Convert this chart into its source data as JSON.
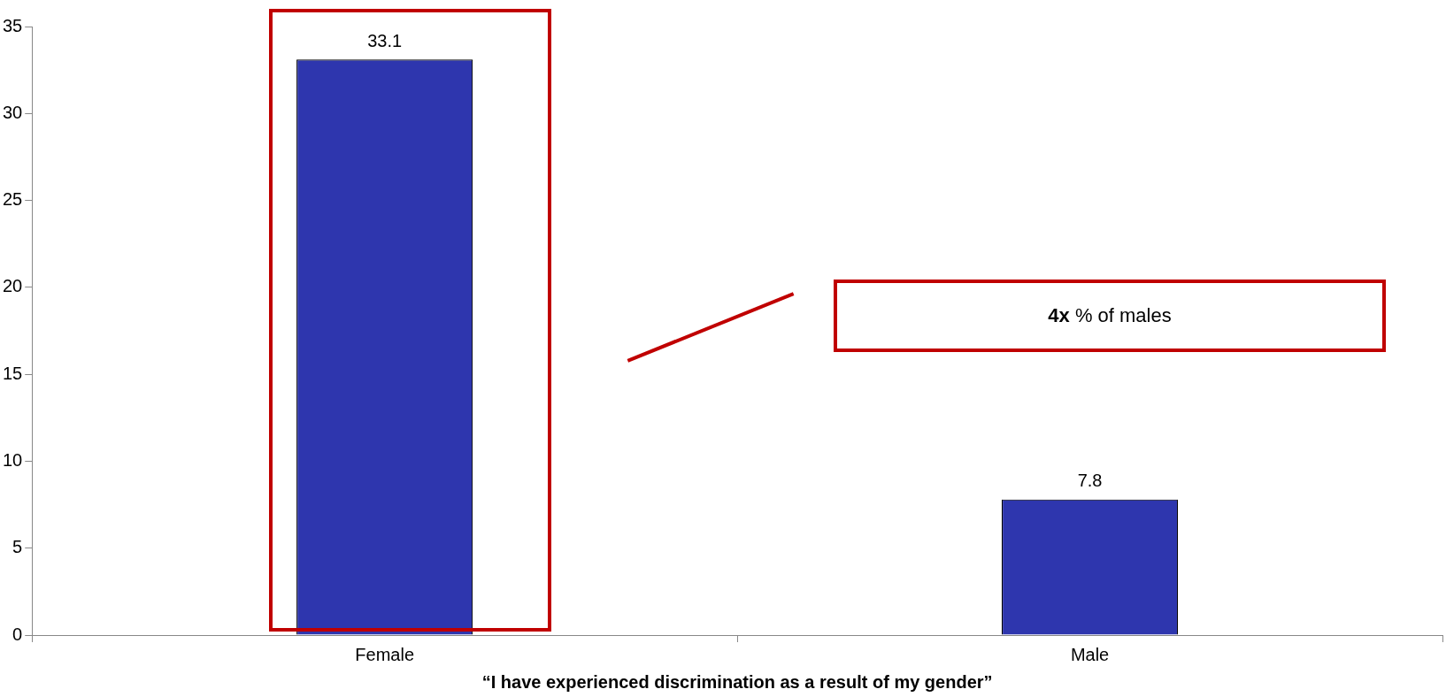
{
  "chart_data": {
    "type": "bar",
    "categories": [
      "Female",
      "Male"
    ],
    "values": [
      33.1,
      7.8
    ],
    "color": "#2e36ae",
    "ylim": [
      0,
      35
    ],
    "yticks": [
      0,
      5,
      10,
      15,
      20,
      25,
      30,
      35
    ],
    "grid": false,
    "data_labels": true,
    "xlabel": "“I have experienced discrimination as a result of my gender”",
    "annotations": [
      "4x % of males"
    ]
  }
}
